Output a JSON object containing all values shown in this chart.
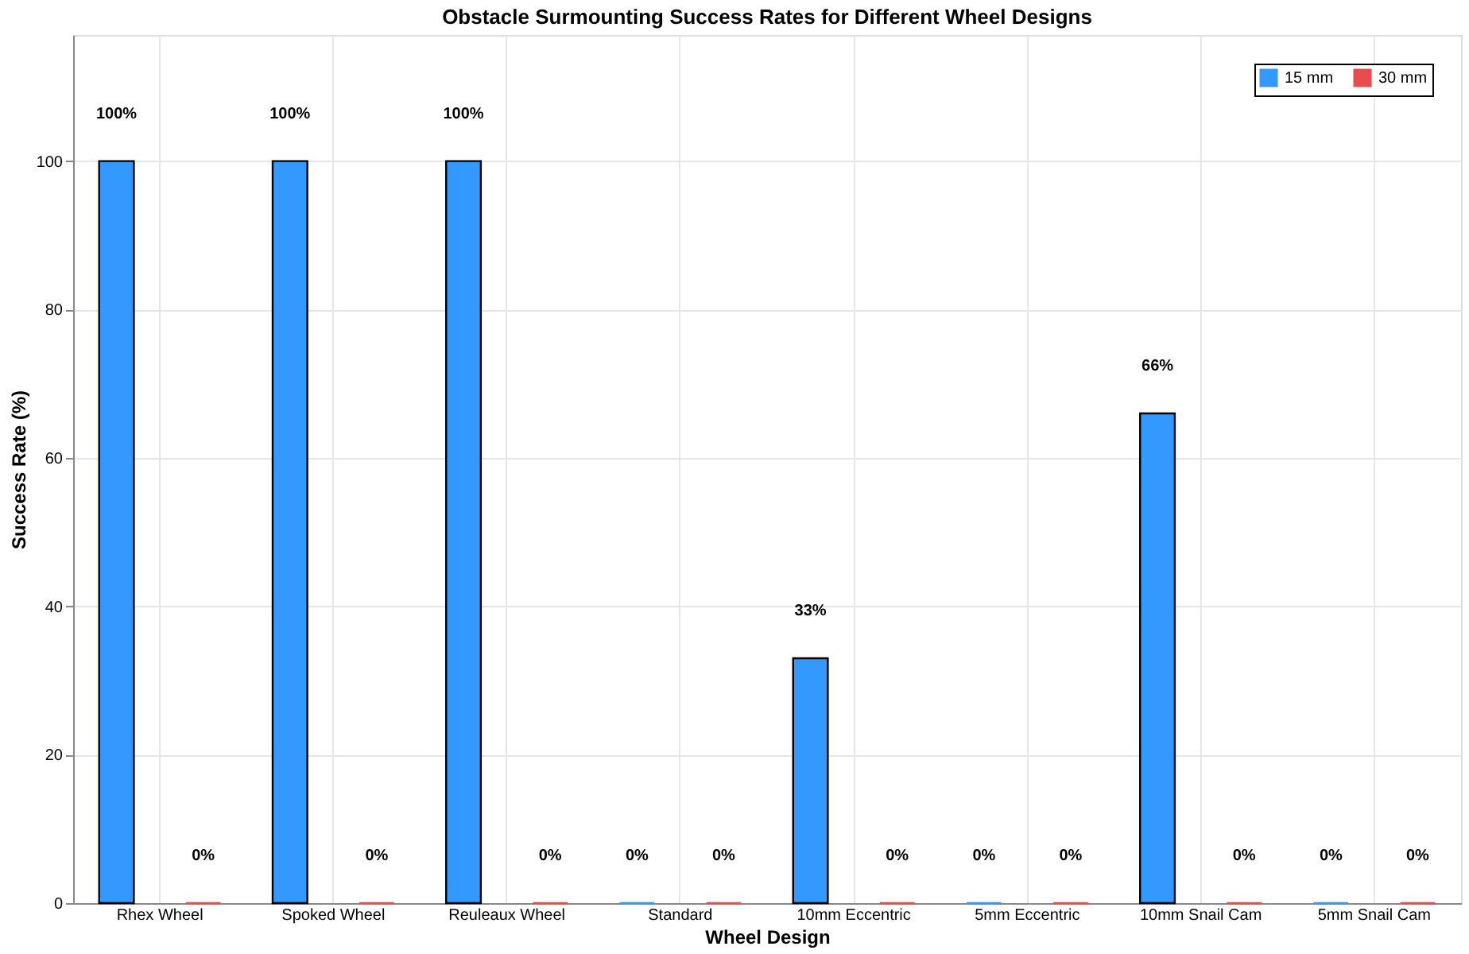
{
  "chart_data": {
    "type": "bar",
    "title": "Obstacle Surmounting Success Rates for Different Wheel Designs",
    "xlabel": "Wheel Design",
    "ylabel": "Success Rate (%)",
    "categories": [
      "Rhex Wheel",
      "Spoked Wheel",
      "Reuleaux Wheel",
      "Standard",
      "10mm Eccentric",
      "5mm Eccentric",
      "10mm Snail Cam",
      "5mm Snail Cam"
    ],
    "series": [
      {
        "name": "15 mm",
        "color": "#3399ff",
        "values": [
          100,
          100,
          100,
          0,
          33,
          0,
          66,
          0
        ],
        "value_labels": [
          "100%",
          "100%",
          "100%",
          "0%",
          "33%",
          "0%",
          "66%",
          "0%"
        ]
      },
      {
        "name": "30 mm",
        "color": "#e84c4c",
        "values": [
          0,
          0,
          0,
          0,
          0,
          0,
          0,
          0
        ],
        "value_labels": [
          "0%",
          "0%",
          "0%",
          "0%",
          "0%",
          "0%",
          "0%",
          "0%"
        ]
      }
    ],
    "ylim": [
      0,
      117
    ],
    "yticks": [
      0,
      20,
      40,
      60,
      80,
      100
    ],
    "grid": true,
    "legend": "top right"
  }
}
